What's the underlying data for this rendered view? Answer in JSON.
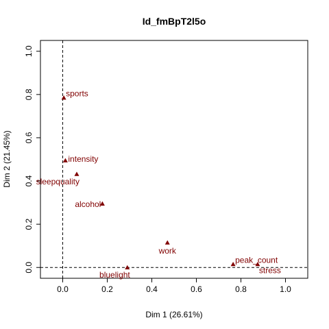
{
  "chart_data": {
    "type": "scatter",
    "title": "Id_fmBpT2l5o",
    "xlabel": "Dim 1 (26.61%)",
    "ylabel": "Dim 2 (21.45%)",
    "xlim": [
      -0.1,
      1.1
    ],
    "ylim": [
      -0.05,
      1.05
    ],
    "xticks": [
      0.0,
      0.2,
      0.4,
      0.6,
      0.8,
      1.0
    ],
    "xtick_labels": [
      "0.0",
      "0.2",
      "0.4",
      "0.6",
      "0.8",
      "1.0"
    ],
    "yticks": [
      0.0,
      0.2,
      0.4,
      0.6,
      0.8,
      1.0
    ],
    "ytick_labels": [
      "0.0",
      "0.2",
      "0.4",
      "0.6",
      "0.8",
      "1.0"
    ],
    "reference_lines": {
      "x": 0,
      "y": 0
    },
    "point_color": "#800000",
    "marker": "triangle",
    "points": [
      {
        "label": "sports",
        "x": 0.005,
        "y": 0.785,
        "anchor": "upper-right"
      },
      {
        "label": "intensity",
        "x": 0.012,
        "y": 0.495,
        "anchor": "right"
      },
      {
        "label": "sleepquality",
        "x": 0.063,
        "y": 0.432,
        "anchor": "lower-left"
      },
      {
        "label": "alcohol",
        "x": 0.178,
        "y": 0.295,
        "anchor": "left"
      },
      {
        "label": "work",
        "x": 0.47,
        "y": 0.115,
        "anchor": "below"
      },
      {
        "label": "bluelight",
        "x": 0.29,
        "y": 0.0,
        "anchor": "lower-left"
      },
      {
        "label": "peak_count",
        "x": 0.765,
        "y": 0.015,
        "anchor": "upper-right"
      },
      {
        "label": "stress",
        "x": 0.875,
        "y": 0.015,
        "anchor": "lower-right"
      }
    ]
  }
}
